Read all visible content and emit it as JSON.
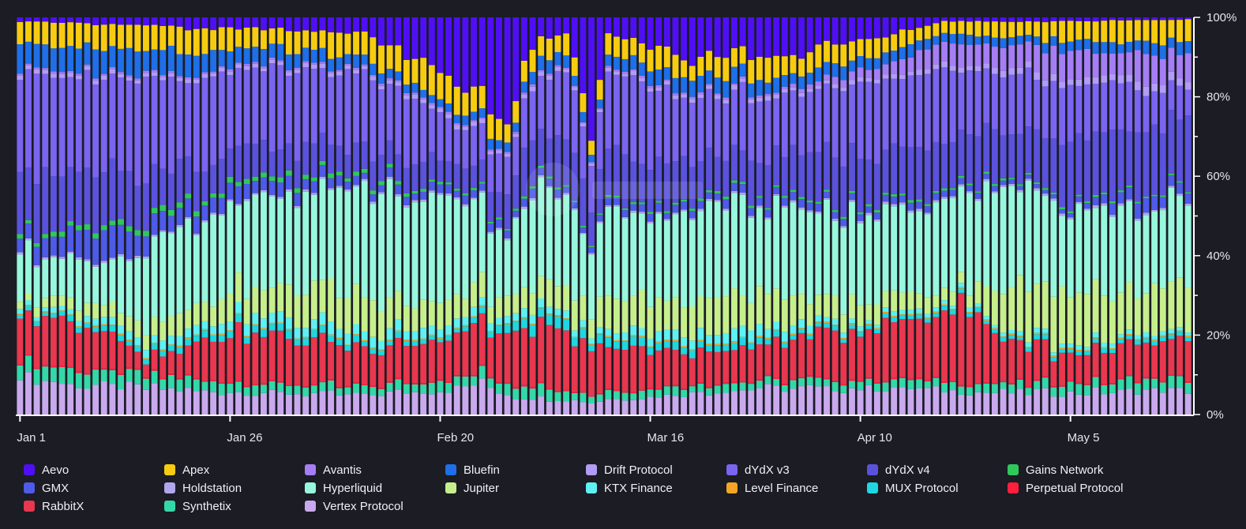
{
  "chart_data": {
    "type": "bar",
    "stacked": true,
    "normalized": true,
    "n_days": 140,
    "x_ticks": [
      {
        "label": "Jan 1",
        "day": 0
      },
      {
        "label": "Jan 26",
        "day": 25
      },
      {
        "label": "Feb 20",
        "day": 50
      },
      {
        "label": "Mar 16",
        "day": 75
      },
      {
        "label": "Apr 10",
        "day": 100
      },
      {
        "label": "May 5",
        "day": 125
      }
    ],
    "y_ticks": [
      "0%",
      "20%",
      "40%",
      "60%",
      "80%",
      "100%"
    ],
    "ylim": [
      0,
      100
    ],
    "legend_position": "bottom",
    "series": [
      {
        "name": "Vertex Protocol",
        "color": "#c9a9ee",
        "key": [
          [
            0,
            10
          ],
          [
            7,
            7
          ],
          [
            14,
            7
          ],
          [
            28,
            6
          ],
          [
            40,
            5
          ],
          [
            50,
            6
          ],
          [
            55,
            8
          ],
          [
            60,
            4
          ],
          [
            75,
            5
          ],
          [
            90,
            7
          ],
          [
            110,
            6
          ],
          [
            125,
            5
          ],
          [
            139,
            6
          ]
        ]
      },
      {
        "name": "Synthetix",
        "color": "#34d8a8",
        "key": [
          [
            0,
            4
          ],
          [
            20,
            3
          ],
          [
            40,
            2
          ],
          [
            60,
            3
          ],
          [
            80,
            2
          ],
          [
            100,
            2
          ],
          [
            120,
            2
          ],
          [
            139,
            3
          ]
        ]
      },
      {
        "name": "Perpetual Protocol",
        "color": "#ff1f3d",
        "key": [
          [
            0,
            0.3
          ],
          [
            139,
            0.3
          ]
        ]
      },
      {
        "name": "RabbitX",
        "color": "#e8374e",
        "key": [
          [
            0,
            12
          ],
          [
            10,
            10
          ],
          [
            15,
            4
          ],
          [
            25,
            14
          ],
          [
            40,
            10
          ],
          [
            50,
            10
          ],
          [
            60,
            14
          ],
          [
            68,
            16
          ],
          [
            75,
            10
          ],
          [
            85,
            8
          ],
          [
            100,
            13
          ],
          [
            107,
            14
          ],
          [
            113,
            21
          ],
          [
            116,
            12
          ],
          [
            125,
            6
          ],
          [
            139,
            9
          ]
        ]
      },
      {
        "name": "MUX Protocol",
        "color": "#1fd7e0",
        "key": [
          [
            0,
            1
          ],
          [
            30,
            2
          ],
          [
            50,
            1
          ],
          [
            65,
            3
          ],
          [
            80,
            2
          ],
          [
            100,
            1
          ],
          [
            130,
            1
          ],
          [
            139,
            1
          ]
        ]
      },
      {
        "name": "Level Finance",
        "color": "#f5a524",
        "key": [
          [
            0,
            0.3
          ],
          [
            139,
            0.3
          ]
        ]
      },
      {
        "name": "KTX Finance",
        "color": "#5ef0f2",
        "key": [
          [
            0,
            1
          ],
          [
            30,
            3
          ],
          [
            55,
            2
          ],
          [
            65,
            2
          ],
          [
            85,
            3
          ],
          [
            100,
            1
          ],
          [
            139,
            1
          ]
        ]
      },
      {
        "name": "Jupiter",
        "color": "#c6ef8c",
        "key": [
          [
            0,
            2
          ],
          [
            15,
            4
          ],
          [
            28,
            8
          ],
          [
            40,
            10
          ],
          [
            50,
            6
          ],
          [
            60,
            5
          ],
          [
            65,
            8
          ],
          [
            75,
            10
          ],
          [
            85,
            9
          ],
          [
            100,
            5
          ],
          [
            113,
            3
          ],
          [
            118,
            12
          ],
          [
            125,
            12
          ],
          [
            132,
            10
          ],
          [
            139,
            12
          ]
        ]
      },
      {
        "name": "Hyperliquid",
        "color": "#97f7dd",
        "key": [
          [
            0,
            12
          ],
          [
            10,
            10
          ],
          [
            15,
            20
          ],
          [
            28,
            23
          ],
          [
            40,
            28
          ],
          [
            50,
            24
          ],
          [
            58,
            18
          ],
          [
            66,
            26
          ],
          [
            68,
            22
          ],
          [
            70,
            27
          ],
          [
            80,
            25
          ],
          [
            90,
            22
          ],
          [
            100,
            22
          ],
          [
            110,
            20
          ],
          [
            116,
            25
          ],
          [
            120,
            25
          ],
          [
            125,
            18
          ],
          [
            139,
            20
          ]
        ]
      },
      {
        "name": "Holdstation",
        "color": "#b0a6ec",
        "key": [
          [
            0,
            0.5
          ],
          [
            139,
            0.5
          ]
        ]
      },
      {
        "name": "GMX",
        "color": "#4e5ae8",
        "key": [
          [
            0,
            3
          ],
          [
            10,
            8
          ],
          [
            15,
            5
          ],
          [
            28,
            4
          ],
          [
            40,
            2
          ],
          [
            50,
            2
          ],
          [
            60,
            2
          ],
          [
            80,
            2
          ],
          [
            100,
            2
          ],
          [
            120,
            1
          ],
          [
            125,
            1
          ],
          [
            132,
            3
          ],
          [
            139,
            3
          ]
        ]
      },
      {
        "name": "Gains Network",
        "color": "#2fc85a",
        "key": [
          [
            0,
            1
          ],
          [
            20,
            1.5
          ],
          [
            40,
            1
          ],
          [
            50,
            0.6
          ],
          [
            60,
            0.5
          ],
          [
            80,
            0.6
          ],
          [
            139,
            0.4
          ]
        ]
      },
      {
        "name": "dYdX v4",
        "color": "#5a52dc",
        "key": [
          [
            0,
            15
          ],
          [
            10,
            15
          ],
          [
            20,
            10
          ],
          [
            30,
            8
          ],
          [
            40,
            7
          ],
          [
            48,
            6
          ],
          [
            55,
            6
          ],
          [
            60,
            10
          ],
          [
            70,
            15
          ],
          [
            80,
            10
          ],
          [
            90,
            10
          ],
          [
            100,
            13
          ],
          [
            110,
            12
          ],
          [
            120,
            12
          ],
          [
            125,
            14
          ],
          [
            139,
            17
          ]
        ]
      },
      {
        "name": "dYdX v3",
        "color": "#7a64f0",
        "key": [
          [
            0,
            24
          ],
          [
            10,
            26
          ],
          [
            20,
            24
          ],
          [
            30,
            22
          ],
          [
            40,
            20
          ],
          [
            48,
            14
          ],
          [
            55,
            8
          ],
          [
            60,
            12
          ],
          [
            70,
            22
          ],
          [
            80,
            18
          ],
          [
            90,
            15
          ],
          [
            100,
            18
          ],
          [
            110,
            16
          ],
          [
            120,
            14
          ],
          [
            125,
            12
          ],
          [
            139,
            8
          ]
        ]
      },
      {
        "name": "Drift Protocol",
        "color": "#b19cf6",
        "key": [
          [
            0,
            1
          ],
          [
            60,
            1
          ],
          [
            100,
            1
          ],
          [
            139,
            2
          ]
        ]
      },
      {
        "name": "Avantis",
        "color": "#a57ef5",
        "key": [
          [
            0,
            0.5
          ],
          [
            90,
            0.5
          ],
          [
            100,
            2
          ],
          [
            110,
            5
          ],
          [
            120,
            6
          ],
          [
            130,
            6
          ],
          [
            139,
            7
          ]
        ]
      },
      {
        "name": "Bluefin",
        "color": "#1e6fe8",
        "key": [
          [
            0,
            6
          ],
          [
            10,
            6
          ],
          [
            20,
            6
          ],
          [
            30,
            4
          ],
          [
            40,
            3
          ],
          [
            50,
            2
          ],
          [
            60,
            3
          ],
          [
            80,
            4
          ],
          [
            100,
            3
          ],
          [
            120,
            2
          ],
          [
            139,
            3
          ]
        ]
      },
      {
        "name": "Apex",
        "color": "#f7cc10",
        "key": [
          [
            0,
            5
          ],
          [
            15,
            6
          ],
          [
            20,
            7
          ],
          [
            30,
            5
          ],
          [
            40,
            6
          ],
          [
            48,
            7
          ],
          [
            55,
            6
          ],
          [
            60,
            5
          ],
          [
            70,
            6
          ],
          [
            80,
            5
          ],
          [
            90,
            6
          ],
          [
            100,
            5
          ],
          [
            110,
            3
          ],
          [
            120,
            4
          ],
          [
            130,
            5
          ],
          [
            139,
            5
          ]
        ]
      },
      {
        "name": "Aevo",
        "color": "#4e0ff5",
        "key": [
          [
            0,
            1
          ],
          [
            15,
            2
          ],
          [
            20,
            3
          ],
          [
            30,
            3
          ],
          [
            40,
            4
          ],
          [
            45,
            8
          ],
          [
            50,
            14
          ],
          [
            55,
            20
          ],
          [
            58,
            30
          ],
          [
            60,
            12
          ],
          [
            62,
            5
          ],
          [
            65,
            5
          ],
          [
            67,
            25
          ],
          [
            68,
            45
          ],
          [
            70,
            5
          ],
          [
            75,
            8
          ],
          [
            80,
            12
          ],
          [
            85,
            8
          ],
          [
            90,
            12
          ],
          [
            95,
            8
          ],
          [
            100,
            6
          ],
          [
            105,
            3
          ],
          [
            110,
            1
          ],
          [
            120,
            1
          ],
          [
            139,
            0.5
          ]
        ]
      }
    ],
    "legend_order": [
      "Aevo",
      "Apex",
      "Avantis",
      "Bluefin",
      "Drift Protocol",
      "dYdX v3",
      "dYdX v4",
      "Gains Network",
      "GMX",
      "Holdstation",
      "Hyperliquid",
      "Jupiter",
      "KTX Finance",
      "Level Finance",
      "MUX Protocol",
      "Perpetual Protocol",
      "RabbitX",
      "Synthetix",
      "Vertex Protocol"
    ]
  }
}
